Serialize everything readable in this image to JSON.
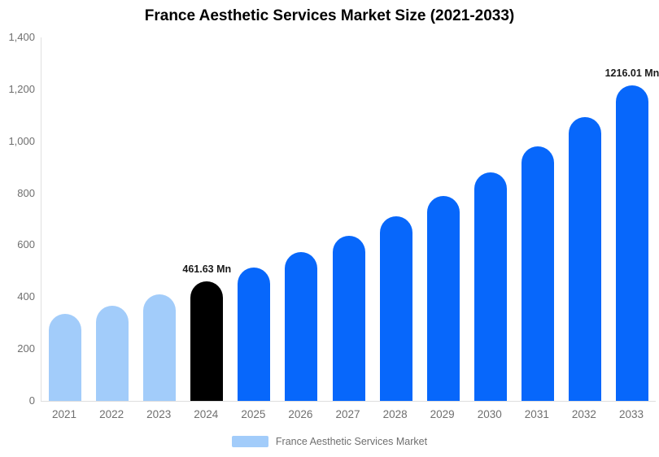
{
  "chart_data": {
    "type": "bar",
    "title": "France Aesthetic Services Market Size (2021-2033)",
    "unit": "Mn",
    "categories": [
      "2021",
      "2022",
      "2023",
      "2024",
      "2025",
      "2026",
      "2027",
      "2028",
      "2029",
      "2030",
      "2031",
      "2032",
      "2033"
    ],
    "values": [
      334,
      368,
      410,
      461.63,
      514,
      572,
      637,
      710,
      790,
      880,
      980,
      1092,
      1216.01
    ],
    "bar_colors": [
      "#A2CCFA",
      "#A2CCFA",
      "#A2CCFA",
      "#000000",
      "#0767FB",
      "#0767FB",
      "#0767FB",
      "#0767FB",
      "#0767FB",
      "#0767FB",
      "#0767FB",
      "#0767FB",
      "#0767FB"
    ],
    "data_labels": [
      null,
      null,
      null,
      "461.63 Mn",
      null,
      null,
      null,
      null,
      null,
      null,
      null,
      null,
      "1216.01 Mn"
    ],
    "y_ticks": [
      "0",
      "200",
      "400",
      "600",
      "800",
      "1,000",
      "1,200",
      "1,400"
    ],
    "ylim": [
      0,
      1400
    ],
    "grid": false,
    "xlabel": "",
    "ylabel": "",
    "legend": {
      "label": "France Aesthetic Services Market",
      "swatch_color": "#A2CCFA",
      "position": "bottom"
    },
    "colors": {
      "historical_bar": "#A2CCFA",
      "base_year_bar": "#000000",
      "forecast_bar": "#0767FB",
      "axis_text": "#6F6F6F",
      "axis_line": "#E0E0E0",
      "title_text": "#000000",
      "value_label_text": "#1A1A1A"
    }
  }
}
